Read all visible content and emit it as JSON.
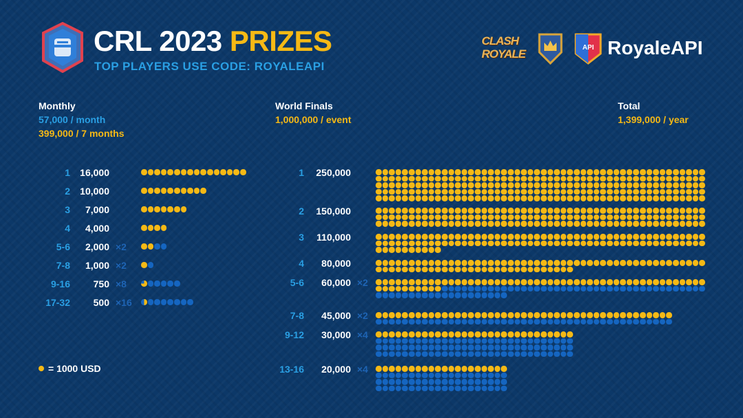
{
  "header": {
    "title_white": "CRL 2023",
    "title_yellow": "PRIZES",
    "subtitle": "TOP PLAYERS USE CODE: ROYALEAPI",
    "logo_crl": "CRL",
    "logo_clash_royale": "CLASH ROYALE",
    "brand": "RoyaleAPI",
    "badge_text": "API"
  },
  "summary": {
    "monthly": {
      "label": "Monthly",
      "per_month": "57,000 / month",
      "per_season": "399,000 / 7 months"
    },
    "world_finals": {
      "label": "World Finals",
      "per_event": "1,000,000 / event"
    },
    "total": {
      "label": "Total",
      "per_year": "1,399,000 / year"
    }
  },
  "legend": {
    "text": "= 1000 USD"
  },
  "colors": {
    "yellow": "#f6b915",
    "light_blue": "#2a9fe3",
    "dot_blue": "#1565c0",
    "bg": "#0c3868"
  },
  "chart_data": [
    {
      "type": "pictogram",
      "title": "Monthly",
      "unit": "1 dot = 1000 USD",
      "rows": [
        {
          "rank": "1",
          "prize": "16,000",
          "value": 16000,
          "count": 1,
          "mult": ""
        },
        {
          "rank": "2",
          "prize": "10,000",
          "value": 10000,
          "count": 1,
          "mult": ""
        },
        {
          "rank": "3",
          "prize": "7,000",
          "value": 7000,
          "count": 1,
          "mult": ""
        },
        {
          "rank": "4",
          "prize": "4,000",
          "value": 4000,
          "count": 1,
          "mult": ""
        },
        {
          "rank": "5-6",
          "prize": "2,000",
          "value": 2000,
          "count": 2,
          "mult": "×2"
        },
        {
          "rank": "7-8",
          "prize": "1,000",
          "value": 1000,
          "count": 2,
          "mult": "×2"
        },
        {
          "rank": "9-16",
          "prize": "750",
          "value": 750,
          "count": 8,
          "mult": "×8"
        },
        {
          "rank": "17-32",
          "prize": "500",
          "value": 500,
          "count": 16,
          "mult": "×16"
        }
      ]
    },
    {
      "type": "pictogram",
      "title": "World Finals",
      "unit": "1 dot = 1000 USD",
      "rows": [
        {
          "rank": "1",
          "prize": "250,000",
          "value": 250000,
          "count": 1,
          "mult": ""
        },
        {
          "rank": "2",
          "prize": "150,000",
          "value": 150000,
          "count": 1,
          "mult": ""
        },
        {
          "rank": "3",
          "prize": "110,000",
          "value": 110000,
          "count": 1,
          "mult": ""
        },
        {
          "rank": "4",
          "prize": "80,000",
          "value": 80000,
          "count": 1,
          "mult": ""
        },
        {
          "rank": "5-6",
          "prize": "60,000",
          "value": 60000,
          "count": 2,
          "mult": "×2"
        },
        {
          "rank": "7-8",
          "prize": "45,000",
          "value": 45000,
          "count": 2,
          "mult": "×2"
        },
        {
          "rank": "9-12",
          "prize": "30,000",
          "value": 30000,
          "count": 4,
          "mult": "×4"
        },
        {
          "rank": "13-16",
          "prize": "20,000",
          "value": 20000,
          "count": 4,
          "mult": "×4"
        }
      ]
    }
  ]
}
